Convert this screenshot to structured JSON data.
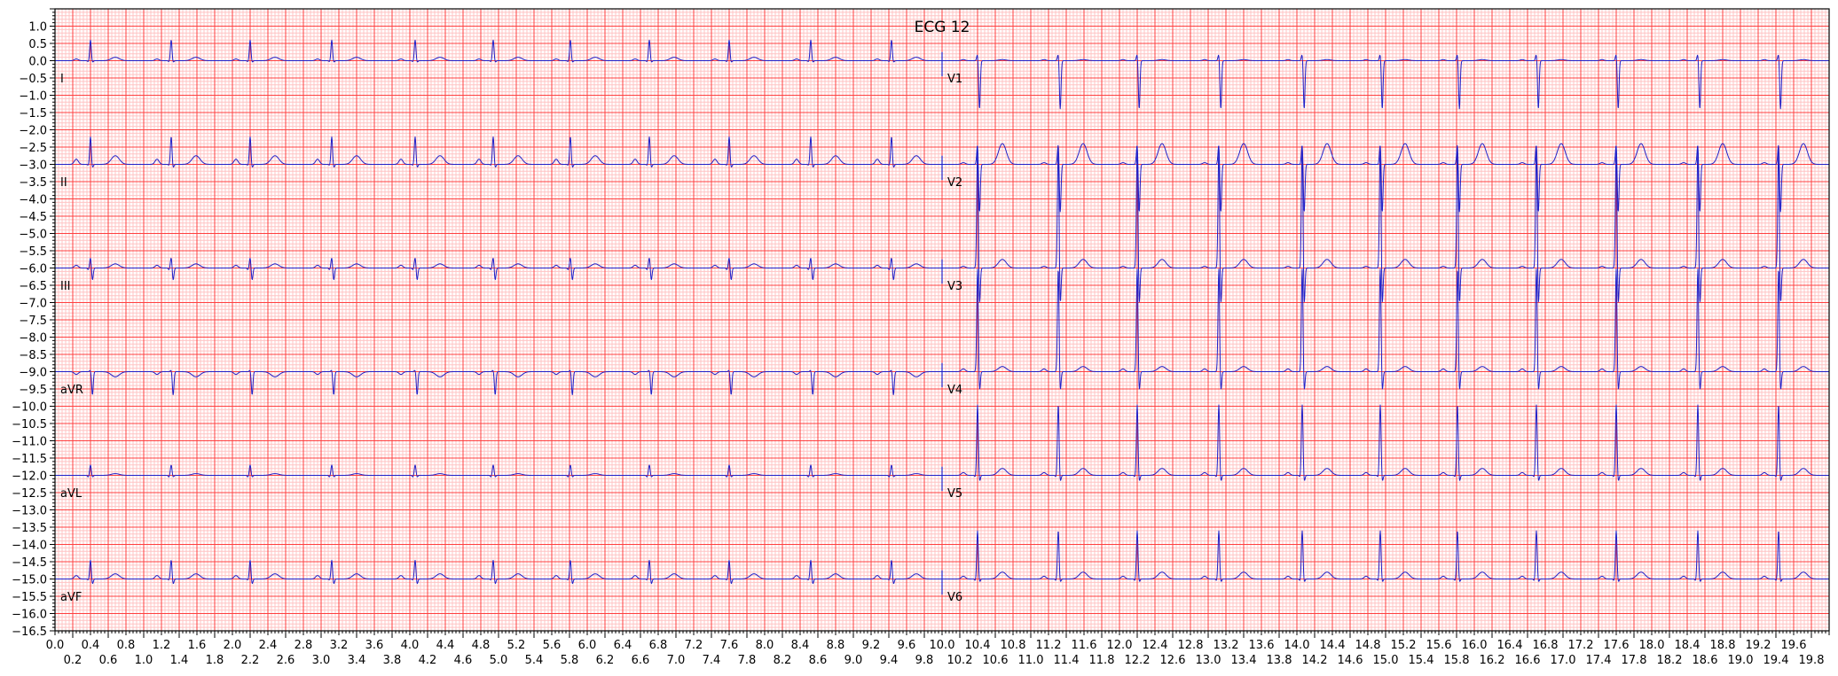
{
  "chart_data": {
    "type": "line",
    "title": "ECG 12",
    "xlabel": "",
    "ylabel": "",
    "xlim": [
      0,
      20
    ],
    "ylim": [
      -16.5,
      1.5
    ],
    "grid": true,
    "colors": {
      "major_grid": "#ff4040",
      "minor_grid": "#ffc4c4",
      "trace": "#2020c8",
      "background": "#ffffff"
    },
    "x_ticks": [
      "0.0",
      "0.2",
      "0.4",
      "0.6",
      "0.8",
      "1.0",
      "1.2",
      "1.4",
      "1.6",
      "1.8",
      "2.0",
      "2.2",
      "2.4",
      "2.6",
      "2.8",
      "3.0",
      "3.2",
      "3.4",
      "3.6",
      "3.8",
      "4.0",
      "4.2",
      "4.4",
      "4.6",
      "4.8",
      "5.0",
      "5.2",
      "5.4",
      "5.6",
      "5.8",
      "6.0",
      "6.2",
      "6.4",
      "6.6",
      "6.8",
      "7.0",
      "7.2",
      "7.4",
      "7.6",
      "7.8",
      "8.0",
      "8.2",
      "8.4",
      "8.6",
      "8.8",
      "9.0",
      "9.2",
      "9.4",
      "9.6",
      "9.8",
      "10.0",
      "10.2",
      "10.4",
      "10.6",
      "10.8",
      "11.0",
      "11.2",
      "11.4",
      "11.6",
      "11.8",
      "12.0",
      "12.2",
      "12.4",
      "12.6",
      "12.8",
      "13.0",
      "13.2",
      "13.4",
      "13.6",
      "13.8",
      "14.0",
      "14.2",
      "14.4",
      "14.6",
      "14.8",
      "15.0",
      "15.2",
      "15.4",
      "15.6",
      "15.8",
      "16.0",
      "16.2",
      "16.4",
      "16.6",
      "16.8",
      "17.0",
      "17.2",
      "17.4",
      "17.6",
      "17.8",
      "18.0",
      "18.2",
      "18.4",
      "18.6",
      "18.8",
      "19.0",
      "19.2",
      "19.4",
      "19.6",
      "19.8"
    ],
    "y_ticks": [
      "1.0",
      "0.5",
      "0.0",
      "−0.5",
      "−1.0",
      "−1.5",
      "−2.0",
      "−2.5",
      "−3.0",
      "−3.5",
      "−4.0",
      "−4.5",
      "−5.0",
      "−5.5",
      "−6.0",
      "−6.5",
      "−7.0",
      "−7.5",
      "−8.0",
      "−8.5",
      "−9.0",
      "−9.5",
      "−10.0",
      "−10.5",
      "−11.0",
      "−11.5",
      "−12.0",
      "−12.5",
      "−13.0",
      "−13.5",
      "−14.0",
      "−14.5",
      "−15.0",
      "−15.5",
      "−16.0",
      "−16.5"
    ],
    "beat_times": [
      0.4,
      1.31,
      2.2,
      3.12,
      4.06,
      4.94,
      5.81,
      6.7,
      7.6,
      8.52,
      9.43,
      10.4,
      11.31,
      12.2,
      13.12,
      14.06,
      14.94,
      15.81,
      16.7,
      17.6,
      18.52,
      19.43
    ],
    "leads": [
      {
        "name": "I",
        "offset": 0,
        "t_range": [
          0,
          10
        ],
        "P": 0.05,
        "Q": -0.03,
        "R": 0.6,
        "S": -0.05,
        "T": 0.1
      },
      {
        "name": "II",
        "offset": -3,
        "t_range": [
          0,
          10
        ],
        "P": 0.15,
        "Q": -0.03,
        "R": 0.8,
        "S": -0.1,
        "T": 0.25
      },
      {
        "name": "III",
        "offset": -6,
        "t_range": [
          0,
          10
        ],
        "P": 0.08,
        "Q": -0.05,
        "R": 0.3,
        "S": -0.35,
        "T": 0.12
      },
      {
        "name": "aVR",
        "offset": -9,
        "t_range": [
          0,
          10
        ],
        "P": -0.08,
        "Q": 0.0,
        "R": 0.05,
        "S": -0.67,
        "T": -0.15
      },
      {
        "name": "aVL",
        "offset": -12,
        "t_range": [
          0,
          10
        ],
        "P": 0.0,
        "Q": -0.05,
        "R": 0.3,
        "S": -0.05,
        "T": 0.05
      },
      {
        "name": "aVF",
        "offset": -15,
        "t_range": [
          0,
          10
        ],
        "P": 0.1,
        "Q": -0.03,
        "R": 0.55,
        "S": -0.15,
        "T": 0.15
      },
      {
        "name": "V1",
        "offset": 0,
        "t_range": [
          10,
          20
        ],
        "P": 0.03,
        "Q": 0.0,
        "R": 0.2,
        "S": -1.4,
        "T": 0.03
      },
      {
        "name": "V2",
        "offset": -3,
        "t_range": [
          10,
          20
        ],
        "P": 0.05,
        "Q": 0.0,
        "R": 0.6,
        "S": -1.4,
        "T": 0.6
      },
      {
        "name": "V3",
        "offset": -6,
        "t_range": [
          10,
          20
        ],
        "P": 0.05,
        "Q": 0.0,
        "R": 3.5,
        "S": -1.1,
        "T": 0.25
      },
      {
        "name": "V4",
        "offset": -9,
        "t_range": [
          10,
          20
        ],
        "P": 0.08,
        "Q": 0.0,
        "R": 3.0,
        "S": -0.6,
        "T": 0.15
      },
      {
        "name": "V5",
        "offset": -12,
        "t_range": [
          10,
          20
        ],
        "P": 0.08,
        "Q": -0.05,
        "R": 2.05,
        "S": -0.2,
        "T": 0.2
      },
      {
        "name": "V6",
        "offset": -15,
        "t_range": [
          10,
          20
        ],
        "P": 0.08,
        "Q": -0.05,
        "R": 1.4,
        "S": -0.1,
        "T": 0.2
      }
    ]
  }
}
